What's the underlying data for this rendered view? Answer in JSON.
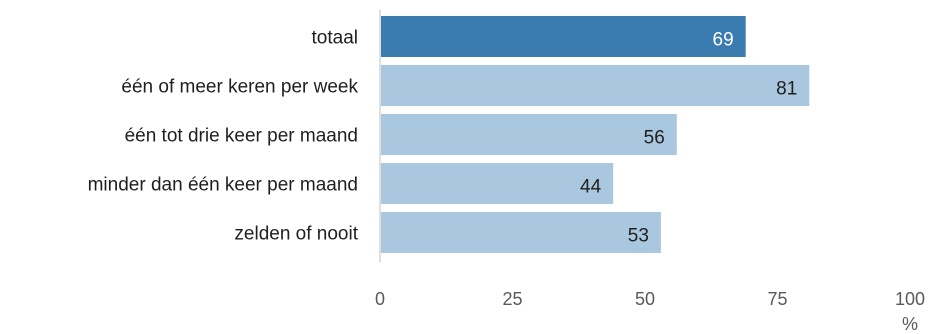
{
  "chart_data": {
    "type": "bar",
    "orientation": "horizontal",
    "categories": [
      "totaal",
      "één of meer keren per week",
      "één tot drie keer per maand",
      "minder dan één keer per maand",
      "zelden of nooit"
    ],
    "values": [
      69,
      81,
      56,
      44,
      53
    ],
    "highlight_index": 0,
    "xlim": [
      0,
      100
    ],
    "xticks": [
      "0",
      "25",
      "50",
      "75",
      "100"
    ],
    "xlabel": "%",
    "grid": false,
    "colors": {
      "highlight_bar": "#3a7cb0",
      "bar": "#a9c7df",
      "highlight_label": "#ffffff",
      "label": "#1f1f1f",
      "axis": "#bfbfbf"
    }
  }
}
